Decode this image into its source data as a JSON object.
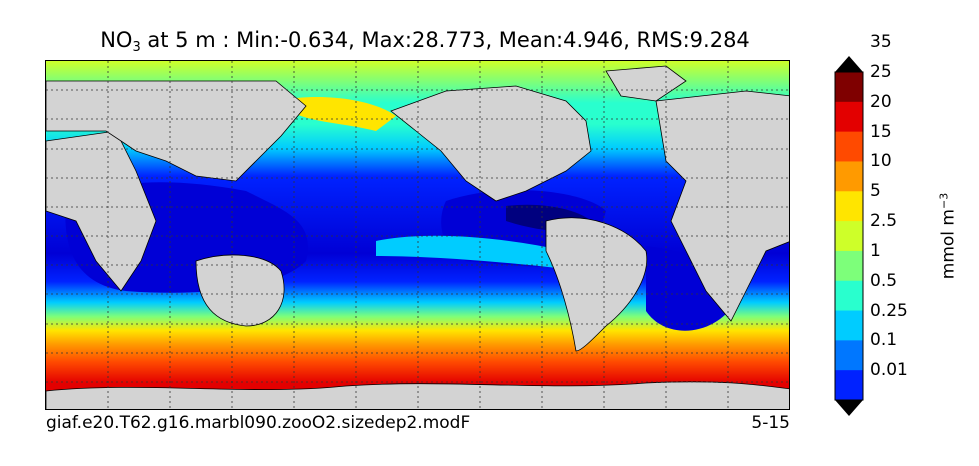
{
  "title": {
    "prefix": "NO",
    "subscript": "3",
    "rest": " at 5 m : Min:-0.634, Max:28.773, Mean:4.946, RMS:9.284"
  },
  "caption": {
    "case_name": "giaf.e20.T62.g16.marbl090.zooO2.sizedep2.modF",
    "years": "5-15"
  },
  "colorbar": {
    "units_main": "mmol m",
    "units_exp": "−3",
    "levels": [
      "0.01",
      "0.1",
      "0.25",
      "0.5",
      "1",
      "2.5",
      "5",
      "10",
      "15",
      "20",
      "25",
      "35"
    ],
    "colors": [
      "#00007f",
      "#0000d6",
      "#0022ff",
      "#0077ff",
      "#00ccff",
      "#29ffce",
      "#7dff7a",
      "#ceff29",
      "#ffe500",
      "#ff9a00",
      "#ff4a00",
      "#e30000",
      "#7f0000"
    ],
    "land_color": "#d3d3d3"
  }
}
